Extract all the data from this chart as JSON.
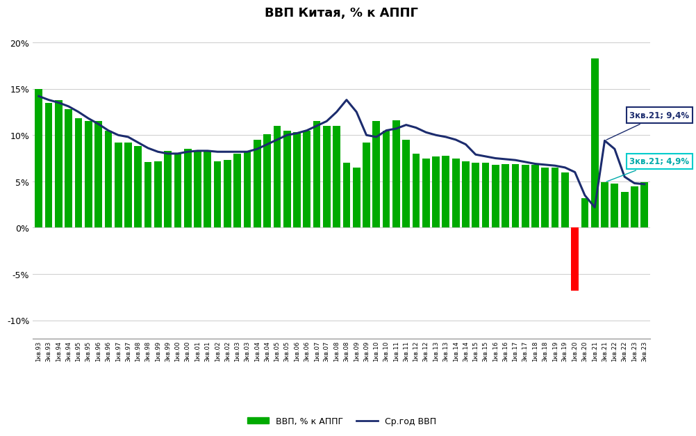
{
  "title": "ВВП Китая, % к АППГ",
  "bar_color": "#00AA00",
  "line_color": "#1C2C6E",
  "red_bar_color": "#FF0000",
  "ylim": [
    -12,
    22
  ],
  "yticks": [
    -10,
    -5,
    0,
    5,
    10,
    15,
    20
  ],
  "ytick_labels": [
    "-10%",
    "-5%",
    "0%",
    "5%",
    "10%",
    "15%",
    "20%"
  ],
  "legend_bar_label": "ВВП, % к АППГ",
  "legend_line_label": "Ср.год ВВП",
  "annotation1_text": "3кв.21; 9,4%",
  "annotation2_text": "3кв.21; 4,9%",
  "labels": [
    "1кв.93",
    "3кв.93",
    "1кв.94",
    "3кв.94",
    "1кв.95",
    "3кв.95",
    "1кв.96",
    "3кв.96",
    "1кв.97",
    "3кв.97",
    "1кв.98",
    "3кв.98",
    "1кв.99",
    "3кв.99",
    "1кв.00",
    "3кв.00",
    "1кв.01",
    "3кв.01",
    "1кв.02",
    "3кв.02",
    "1кв.03",
    "3кв.03",
    "1кв.04",
    "3кв.04",
    "1кв.05",
    "3кв.05",
    "1кв.06",
    "3кв.06",
    "1кв.07",
    "3кв.07",
    "1кв.08",
    "3кв.08",
    "1кв.09",
    "3кв.09",
    "1кв.10",
    "3кв.10",
    "1кв.11",
    "3кв.11",
    "1кв.12",
    "3кв.12",
    "1кв.13",
    "3кв.13",
    "1кв.14",
    "3кв.14",
    "1кв.15",
    "3кв.15",
    "1кв.16",
    "3кв.16",
    "1кв.17",
    "3кв.17",
    "1кв.18",
    "3кв.18",
    "1кв.19",
    "3кв.19",
    "1кв.20",
    "3кв.20",
    "1кв.21",
    "3кв.21",
    "1кв.22",
    "3кв.22",
    "1кв.23",
    "3кв.23"
  ],
  "bar_values": [
    15.0,
    13.5,
    13.8,
    12.8,
    11.8,
    11.5,
    11.5,
    10.5,
    9.2,
    9.2,
    8.8,
    7.1,
    7.2,
    8.3,
    8.0,
    8.5,
    8.3,
    8.3,
    7.2,
    7.3,
    8.0,
    8.3,
    9.5,
    10.1,
    11.0,
    10.5,
    10.3,
    10.5,
    11.5,
    11.0,
    11.0,
    7.0,
    6.5,
    9.2,
    11.5,
    10.5,
    11.6,
    9.5,
    8.0,
    7.5,
    7.7,
    7.8,
    7.5,
    7.2,
    7.0,
    7.0,
    6.8,
    6.9,
    6.9,
    6.8,
    6.8,
    6.5,
    6.5,
    6.0,
    -6.8,
    3.2,
    18.3,
    4.9,
    4.8,
    3.9,
    4.5,
    4.9
  ],
  "ma_values": [
    14.2,
    13.8,
    13.5,
    13.1,
    12.5,
    11.8,
    11.2,
    10.5,
    10.0,
    9.8,
    9.2,
    8.6,
    8.2,
    8.0,
    8.0,
    8.2,
    8.3,
    8.3,
    8.2,
    8.2,
    8.2,
    8.2,
    8.5,
    9.0,
    9.5,
    10.0,
    10.2,
    10.5,
    11.0,
    11.5,
    12.5,
    13.8,
    12.5,
    10.0,
    9.8,
    10.5,
    10.7,
    11.1,
    10.8,
    10.3,
    10.0,
    9.8,
    9.5,
    9.0,
    7.9,
    7.7,
    7.5,
    7.4,
    7.3,
    7.1,
    6.9,
    6.8,
    6.7,
    6.5,
    6.0,
    3.5,
    2.2,
    9.4,
    8.5,
    5.5,
    4.8,
    4.7
  ],
  "red_bar_index": 54
}
